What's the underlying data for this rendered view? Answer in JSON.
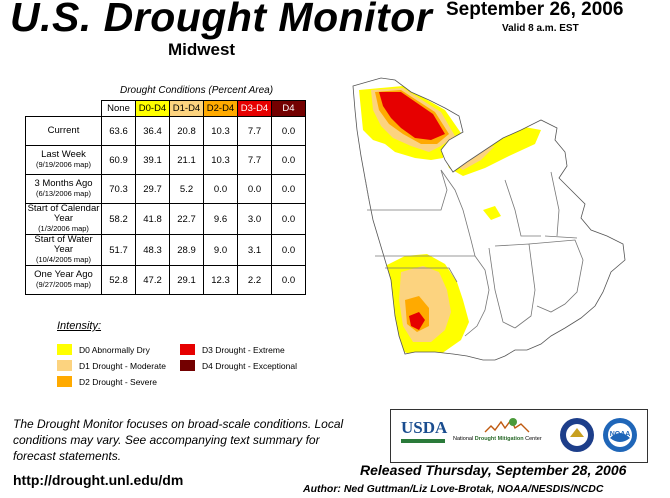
{
  "header": {
    "title": "U.S. Drought Monitor",
    "region": "Midwest",
    "date": "September 26, 2006",
    "valid": "Valid 8 a.m. EST"
  },
  "table": {
    "caption": "Drought Conditions (Percent Area)",
    "columns": [
      "None",
      "D0-D4",
      "D1-D4",
      "D2-D4",
      "D3-D4",
      "D4"
    ],
    "column_colors": [
      "#ffffff",
      "#ffff00",
      "#fcd37f",
      "#ffaa00",
      "#e60000",
      "#730000"
    ],
    "rows": [
      {
        "label": "Current",
        "sub": "",
        "values": [
          "63.6",
          "36.4",
          "20.8",
          "10.3",
          "7.7",
          "0.0"
        ]
      },
      {
        "label": "Last Week",
        "sub": "(9/19/2006 map)",
        "values": [
          "60.9",
          "39.1",
          "21.1",
          "10.3",
          "7.7",
          "0.0"
        ]
      },
      {
        "label": "3 Months Ago",
        "sub": "(6/13/2006 map)",
        "values": [
          "70.3",
          "29.7",
          "5.2",
          "0.0",
          "0.0",
          "0.0"
        ]
      },
      {
        "label": "Start of Calendar Year",
        "sub": "(1/3/2006 map)",
        "values": [
          "58.2",
          "41.8",
          "22.7",
          "9.6",
          "3.0",
          "0.0"
        ]
      },
      {
        "label": "Start of Water Year",
        "sub": "(10/4/2005 map)",
        "values": [
          "51.7",
          "48.3",
          "28.9",
          "9.0",
          "3.1",
          "0.0"
        ]
      },
      {
        "label": "One Year Ago",
        "sub": "(9/27/2005 map)",
        "values": [
          "52.8",
          "47.2",
          "29.1",
          "12.3",
          "2.2",
          "0.0"
        ]
      }
    ]
  },
  "legend": {
    "title": "Intensity:",
    "items": [
      {
        "label": "D0 Abnormally Dry",
        "color": "#ffff00"
      },
      {
        "label": "D1 Drought - Moderate",
        "color": "#fcd37f"
      },
      {
        "label": "D2 Drought - Severe",
        "color": "#ffaa00"
      },
      {
        "label": "D3 Drought - Extreme",
        "color": "#e60000"
      },
      {
        "label": "D4 Drought - Exceptional",
        "color": "#730000"
      }
    ]
  },
  "footer": {
    "note": "The Drought Monitor focuses on broad-scale conditions. Local conditions may vary. See accompanying text summary for forecast statements.",
    "url": "http://drought.unl.edu/dm",
    "released": "Released Thursday, September 28, 2006",
    "author": "Author: Ned Guttman/Liz Love-Brotak, NOAA/NESDIS/NCDC"
  },
  "logos": {
    "usda": "USDA",
    "ndmc_prefix": "National",
    "ndmc_main": "Drought Mitigation",
    "ndmc_suffix": "Center",
    "noaa": "NOAA"
  }
}
